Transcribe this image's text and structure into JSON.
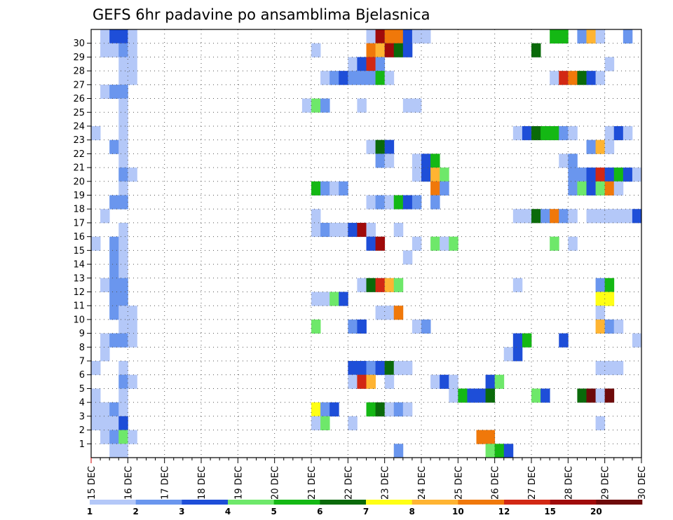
{
  "chart_data": {
    "type": "heatmap",
    "title": "GEFS 6hr padavine po ansamblima Bjelasnica",
    "y_labels": [
      "1",
      "2",
      "3",
      "4",
      "5",
      "6",
      "7",
      "8",
      "9",
      "10",
      "11",
      "12",
      "13",
      "14",
      "15",
      "16",
      "17",
      "18",
      "19",
      "20",
      "21",
      "22",
      "23",
      "24",
      "25",
      "26",
      "27",
      "28",
      "29",
      "30"
    ],
    "x_labels": [
      "15 DEC",
      "16 DEC",
      "17 DEC",
      "18 DEC",
      "19 DEC",
      "20 DEC",
      "21 DEC",
      "22 DEC",
      "23 DEC",
      "24 DEC",
      "25 DEC",
      "26 DEC",
      "27 DEC",
      "28 DEC",
      "29 DEC",
      "30 DEC"
    ],
    "x_range_days": [
      0,
      15
    ],
    "steps_per_day": 4,
    "grid": true,
    "colorbar": {
      "levels": [
        "1",
        "2",
        "3",
        "4",
        "5",
        "6",
        "7",
        "8",
        "10",
        "12",
        "15",
        "20"
      ],
      "colors": [
        "#b4c8f8",
        "#6a96ee",
        "#1e4ed8",
        "#6ee86a",
        "#14b814",
        "#0a6a0a",
        "#ffff14",
        "#ffb432",
        "#f0780a",
        "#d22814",
        "#a00a0a",
        "#6e0a0a"
      ]
    },
    "cells": [
      [
        30,
        0.25,
        0.5,
        1
      ],
      [
        30,
        0.5,
        1.0,
        3
      ],
      [
        30,
        1.0,
        1.25,
        1
      ],
      [
        30,
        7.5,
        7.75,
        1
      ],
      [
        30,
        7.75,
        8.0,
        11
      ],
      [
        30,
        8.0,
        8.5,
        9
      ],
      [
        30,
        8.5,
        8.75,
        3
      ],
      [
        30,
        8.75,
        9.25,
        1
      ],
      [
        30,
        12.5,
        13.0,
        5
      ],
      [
        30,
        13.25,
        13.5,
        2
      ],
      [
        30,
        13.5,
        13.75,
        8
      ],
      [
        30,
        13.75,
        14.0,
        1
      ],
      [
        30,
        14.5,
        14.75,
        2
      ],
      [
        29,
        0.25,
        0.5,
        1
      ],
      [
        29,
        0.5,
        0.75,
        1
      ],
      [
        29,
        0.75,
        1.0,
        2
      ],
      [
        29,
        1.0,
        1.25,
        1
      ],
      [
        29,
        6.0,
        6.25,
        1
      ],
      [
        29,
        7.5,
        7.75,
        9
      ],
      [
        29,
        7.75,
        8.0,
        8
      ],
      [
        29,
        8.0,
        8.25,
        11
      ],
      [
        29,
        8.25,
        8.5,
        6
      ],
      [
        29,
        8.5,
        8.75,
        3
      ],
      [
        29,
        12.0,
        12.25,
        6
      ],
      [
        28,
        0.75,
        1.25,
        1
      ],
      [
        28,
        7.0,
        7.25,
        1
      ],
      [
        28,
        7.25,
        7.5,
        3
      ],
      [
        28,
        7.5,
        7.75,
        10
      ],
      [
        28,
        7.75,
        8.0,
        2
      ],
      [
        28,
        14.0,
        14.25,
        1
      ],
      [
        27,
        0.75,
        1.0,
        1
      ],
      [
        27,
        1.0,
        1.25,
        1
      ],
      [
        27,
        6.25,
        6.5,
        1
      ],
      [
        27,
        6.5,
        6.75,
        2
      ],
      [
        27,
        6.75,
        7.0,
        3
      ],
      [
        27,
        7.0,
        7.75,
        2
      ],
      [
        27,
        7.75,
        8.0,
        5
      ],
      [
        27,
        8.0,
        8.25,
        1
      ],
      [
        27,
        12.5,
        12.75,
        1
      ],
      [
        27,
        12.75,
        13.0,
        10
      ],
      [
        27,
        13.0,
        13.25,
        9
      ],
      [
        27,
        13.25,
        13.5,
        6
      ],
      [
        27,
        13.5,
        13.75,
        3
      ],
      [
        27,
        13.75,
        14.0,
        1
      ],
      [
        26,
        0.25,
        0.5,
        1
      ],
      [
        26,
        0.5,
        1.0,
        2
      ],
      [
        25,
        0.75,
        1.0,
        1
      ],
      [
        25,
        5.75,
        6.0,
        1
      ],
      [
        25,
        6.0,
        6.25,
        4
      ],
      [
        25,
        6.25,
        6.5,
        2
      ],
      [
        25,
        7.25,
        7.5,
        1
      ],
      [
        25,
        8.5,
        9.0,
        1
      ],
      [
        24,
        0.75,
        1.0,
        1
      ],
      [
        23,
        0.0,
        0.25,
        1
      ],
      [
        23,
        0.75,
        1.0,
        1
      ],
      [
        23,
        11.5,
        11.75,
        1
      ],
      [
        23,
        11.75,
        12.0,
        3
      ],
      [
        23,
        12.0,
        12.25,
        6
      ],
      [
        23,
        12.25,
        12.75,
        5
      ],
      [
        23,
        12.75,
        13.0,
        2
      ],
      [
        23,
        13.0,
        13.25,
        1
      ],
      [
        23,
        14.0,
        14.25,
        1
      ],
      [
        23,
        14.25,
        14.5,
        3
      ],
      [
        23,
        14.5,
        14.75,
        1
      ],
      [
        22,
        0.5,
        0.75,
        2
      ],
      [
        22,
        0.75,
        1.0,
        1
      ],
      [
        22,
        7.5,
        7.75,
        1
      ],
      [
        22,
        7.75,
        8.0,
        6
      ],
      [
        22,
        8.0,
        8.25,
        3
      ],
      [
        22,
        13.5,
        13.75,
        2
      ],
      [
        22,
        13.75,
        14.0,
        8
      ],
      [
        22,
        14.0,
        14.25,
        1
      ],
      [
        21,
        0.75,
        1.0,
        1
      ],
      [
        21,
        7.75,
        8.0,
        2
      ],
      [
        21,
        8.0,
        8.25,
        1
      ],
      [
        21,
        8.75,
        9.0,
        1
      ],
      [
        21,
        9.0,
        9.25,
        3
      ],
      [
        21,
        9.25,
        9.5,
        5
      ],
      [
        21,
        12.75,
        13.0,
        1
      ],
      [
        21,
        13.0,
        13.25,
        2
      ],
      [
        20,
        0.75,
        1.0,
        2
      ],
      [
        20,
        1.0,
        1.25,
        1
      ],
      [
        20,
        8.75,
        9.0,
        1
      ],
      [
        20,
        9.0,
        9.25,
        3
      ],
      [
        20,
        9.25,
        9.5,
        8
      ],
      [
        20,
        9.5,
        9.75,
        4
      ],
      [
        20,
        13.0,
        13.25,
        2
      ],
      [
        20,
        13.25,
        13.5,
        2
      ],
      [
        20,
        13.5,
        13.75,
        3
      ],
      [
        20,
        13.75,
        14.0,
        10
      ],
      [
        20,
        14.0,
        14.25,
        3
      ],
      [
        20,
        14.25,
        14.5,
        5
      ],
      [
        20,
        14.5,
        14.75,
        3
      ],
      [
        20,
        14.75,
        15.0,
        1
      ],
      [
        19,
        0.75,
        1.0,
        1
      ],
      [
        19,
        6.0,
        6.25,
        5
      ],
      [
        19,
        6.25,
        6.5,
        2
      ],
      [
        19,
        6.5,
        6.75,
        1
      ],
      [
        19,
        6.75,
        7.0,
        2
      ],
      [
        19,
        9.25,
        9.5,
        9
      ],
      [
        19,
        9.5,
        9.75,
        2
      ],
      [
        19,
        13.0,
        13.25,
        2
      ],
      [
        19,
        13.25,
        13.5,
        4
      ],
      [
        19,
        13.5,
        13.75,
        3
      ],
      [
        19,
        13.75,
        14.0,
        4
      ],
      [
        19,
        14.0,
        14.25,
        9
      ],
      [
        19,
        14.25,
        14.5,
        1
      ],
      [
        18,
        0.5,
        1.0,
        2
      ],
      [
        18,
        7.5,
        7.75,
        1
      ],
      [
        18,
        7.75,
        8.0,
        2
      ],
      [
        18,
        8.0,
        8.25,
        1
      ],
      [
        18,
        8.25,
        8.5,
        5
      ],
      [
        18,
        8.5,
        8.75,
        3
      ],
      [
        18,
        8.75,
        9.0,
        2
      ],
      [
        18,
        9.25,
        9.5,
        2
      ],
      [
        17,
        0.25,
        0.5,
        1
      ],
      [
        17,
        6.0,
        6.25,
        1
      ],
      [
        17,
        11.5,
        12.0,
        1
      ],
      [
        17,
        12.0,
        12.25,
        6
      ],
      [
        17,
        12.25,
        12.5,
        2
      ],
      [
        17,
        12.5,
        12.75,
        9
      ],
      [
        17,
        12.75,
        13.0,
        2
      ],
      [
        17,
        13.0,
        13.25,
        1
      ],
      [
        17,
        13.5,
        14.5,
        1
      ],
      [
        17,
        14.5,
        14.75,
        1
      ],
      [
        17,
        14.75,
        15.0,
        3
      ],
      [
        16,
        0.75,
        1.0,
        1
      ],
      [
        16,
        6.0,
        6.25,
        1
      ],
      [
        16,
        6.25,
        6.5,
        2
      ],
      [
        16,
        6.5,
        7.0,
        1
      ],
      [
        16,
        7.0,
        7.25,
        3
      ],
      [
        16,
        7.25,
        7.5,
        11
      ],
      [
        16,
        7.5,
        7.75,
        1
      ],
      [
        16,
        8.25,
        8.5,
        1
      ],
      [
        15,
        0.0,
        0.25,
        1
      ],
      [
        15,
        0.5,
        0.75,
        2
      ],
      [
        15,
        0.75,
        1.0,
        1
      ],
      [
        15,
        7.5,
        7.75,
        3
      ],
      [
        15,
        7.75,
        8.0,
        11
      ],
      [
        15,
        8.75,
        9.0,
        1
      ],
      [
        15,
        9.25,
        9.5,
        4
      ],
      [
        15,
        9.5,
        9.75,
        1
      ],
      [
        15,
        9.75,
        10.0,
        4
      ],
      [
        15,
        12.5,
        12.75,
        4
      ],
      [
        15,
        13.0,
        13.25,
        1
      ],
      [
        14,
        0.5,
        0.75,
        2
      ],
      [
        14,
        0.75,
        1.0,
        1
      ],
      [
        14,
        8.5,
        8.75,
        1
      ],
      [
        13,
        0.5,
        0.75,
        2
      ],
      [
        13,
        0.75,
        1.0,
        1
      ],
      [
        12,
        0.25,
        0.5,
        1
      ],
      [
        12,
        0.5,
        1.0,
        2
      ],
      [
        12,
        7.25,
        7.5,
        1
      ],
      [
        12,
        7.5,
        7.75,
        6
      ],
      [
        12,
        7.75,
        8.0,
        10
      ],
      [
        12,
        8.0,
        8.25,
        8
      ],
      [
        12,
        8.25,
        8.5,
        4
      ],
      [
        12,
        11.5,
        11.75,
        1
      ],
      [
        12,
        13.75,
        14.0,
        2
      ],
      [
        12,
        14.0,
        14.25,
        5
      ],
      [
        11,
        0.5,
        1.0,
        2
      ],
      [
        11,
        6.0,
        6.5,
        1
      ],
      [
        11,
        6.5,
        6.75,
        4
      ],
      [
        11,
        6.75,
        7.0,
        3
      ],
      [
        11,
        13.75,
        14.25,
        7
      ],
      [
        10,
        0.5,
        0.75,
        2
      ],
      [
        10,
        0.75,
        1.25,
        1
      ],
      [
        10,
        7.75,
        8.25,
        1
      ],
      [
        10,
        8.25,
        8.5,
        9
      ],
      [
        10,
        13.75,
        14.0,
        1
      ],
      [
        9,
        0.75,
        1.25,
        1
      ],
      [
        9,
        6.0,
        6.25,
        4
      ],
      [
        9,
        7.0,
        7.25,
        2
      ],
      [
        9,
        7.25,
        7.5,
        3
      ],
      [
        9,
        8.75,
        9.0,
        1
      ],
      [
        9,
        9.0,
        9.25,
        2
      ],
      [
        9,
        13.75,
        14.0,
        8
      ],
      [
        9,
        14.0,
        14.25,
        2
      ],
      [
        9,
        14.25,
        14.5,
        1
      ],
      [
        8,
        0.25,
        0.5,
        1
      ],
      [
        8,
        0.5,
        1.0,
        2
      ],
      [
        8,
        1.0,
        1.25,
        1
      ],
      [
        8,
        11.5,
        11.75,
        3
      ],
      [
        8,
        11.75,
        12.0,
        5
      ],
      [
        8,
        12.75,
        13.0,
        3
      ],
      [
        8,
        14.75,
        15.0,
        1
      ],
      [
        7,
        0.25,
        0.5,
        1
      ],
      [
        7,
        11.25,
        11.5,
        1
      ],
      [
        7,
        11.5,
        11.75,
        3
      ],
      [
        6,
        0.0,
        0.25,
        1
      ],
      [
        6,
        0.75,
        1.0,
        1
      ],
      [
        6,
        7.0,
        7.5,
        3
      ],
      [
        6,
        7.5,
        7.75,
        2
      ],
      [
        6,
        7.75,
        8.0,
        3
      ],
      [
        6,
        8.0,
        8.25,
        6
      ],
      [
        6,
        8.25,
        8.75,
        1
      ],
      [
        6,
        13.75,
        14.5,
        1
      ],
      [
        5,
        0.75,
        1.0,
        2
      ],
      [
        5,
        1.0,
        1.25,
        1
      ],
      [
        5,
        7.0,
        7.25,
        1
      ],
      [
        5,
        7.25,
        7.5,
        10
      ],
      [
        5,
        7.5,
        7.75,
        8
      ],
      [
        5,
        8.0,
        8.25,
        1
      ],
      [
        5,
        9.25,
        9.5,
        1
      ],
      [
        5,
        9.5,
        9.75,
        3
      ],
      [
        5,
        9.75,
        10.0,
        1
      ],
      [
        5,
        10.75,
        11.0,
        3
      ],
      [
        5,
        11.0,
        11.25,
        4
      ],
      [
        4,
        0.0,
        0.25,
        1
      ],
      [
        4,
        0.75,
        1.0,
        1
      ],
      [
        4,
        9.75,
        10.0,
        1
      ],
      [
        4,
        10.0,
        10.25,
        5
      ],
      [
        4,
        10.25,
        10.5,
        3
      ],
      [
        4,
        10.5,
        10.75,
        3
      ],
      [
        4,
        10.75,
        11.0,
        6
      ],
      [
        4,
        12.0,
        12.25,
        4
      ],
      [
        4,
        12.25,
        12.5,
        3
      ],
      [
        4,
        13.25,
        13.5,
        6
      ],
      [
        4,
        13.5,
        13.75,
        12
      ],
      [
        4,
        13.75,
        14.0,
        1
      ],
      [
        4,
        14.0,
        14.25,
        12
      ],
      [
        3,
        0.0,
        0.5,
        1
      ],
      [
        3,
        0.5,
        0.75,
        2
      ],
      [
        3,
        0.75,
        1.0,
        1
      ],
      [
        3,
        6.0,
        6.25,
        7
      ],
      [
        3,
        6.25,
        6.5,
        2
      ],
      [
        3,
        6.5,
        6.75,
        3
      ],
      [
        3,
        7.5,
        7.75,
        5
      ],
      [
        3,
        7.75,
        8.0,
        6
      ],
      [
        3,
        8.0,
        8.25,
        1
      ],
      [
        3,
        8.25,
        8.5,
        2
      ],
      [
        3,
        8.5,
        8.75,
        1
      ],
      [
        2,
        0.0,
        0.75,
        1
      ],
      [
        2,
        0.75,
        1.0,
        3
      ],
      [
        2,
        6.0,
        6.25,
        1
      ],
      [
        2,
        6.25,
        6.5,
        4
      ],
      [
        2,
        7.0,
        7.25,
        1
      ],
      [
        2,
        13.75,
        14.0,
        1
      ],
      [
        1,
        0.25,
        0.5,
        1
      ],
      [
        1,
        0.5,
        0.75,
        2
      ],
      [
        1,
        0.75,
        1.0,
        4
      ],
      [
        1,
        1.0,
        1.25,
        1
      ],
      [
        1,
        10.5,
        11.0,
        9
      ],
      [
        0,
        0.5,
        1.0,
        1
      ],
      [
        0,
        8.25,
        8.5,
        2
      ],
      [
        0,
        10.75,
        11.0,
        4
      ],
      [
        0,
        11.0,
        11.25,
        5
      ],
      [
        0,
        11.25,
        11.5,
        3
      ]
    ]
  }
}
